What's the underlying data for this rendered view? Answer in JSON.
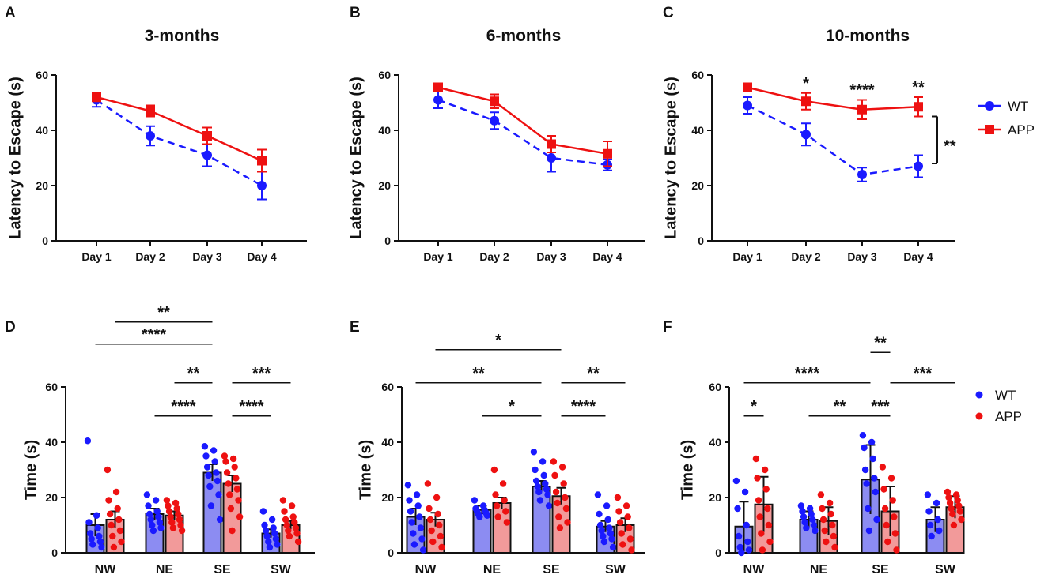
{
  "chart_data": [
    {
      "id": "A",
      "type": "line",
      "panel_label": "A",
      "title": "3-months",
      "xlabel": "",
      "ylabel": "Latency to Escape (s)",
      "ylim": [
        0,
        60
      ],
      "yticks": [
        "0",
        "20",
        "40",
        "60"
      ],
      "categories": [
        "Day 1",
        "Day 2",
        "Day 3",
        "Day 4"
      ],
      "series": [
        {
          "name": "WT",
          "color": "#1a1aff",
          "dashed": true,
          "marker": "circle",
          "values": [
            51,
            38,
            31,
            20
          ],
          "errors": [
            2.5,
            3.5,
            4,
            5
          ]
        },
        {
          "name": "APP",
          "color": "#ee1111",
          "dashed": false,
          "marker": "square",
          "values": [
            52,
            47,
            38,
            29
          ],
          "errors": [
            1.5,
            2,
            3,
            4
          ]
        }
      ],
      "annotations": []
    },
    {
      "id": "B",
      "type": "line",
      "panel_label": "B",
      "title": "6-months",
      "xlabel": "",
      "ylabel": "Latency to Escape (s)",
      "ylim": [
        0,
        60
      ],
      "yticks": [
        "0",
        "20",
        "40",
        "60"
      ],
      "categories": [
        "Day 1",
        "Day 2",
        "Day 3",
        "Day 4"
      ],
      "series": [
        {
          "name": "WT",
          "color": "#1a1aff",
          "dashed": true,
          "marker": "circle",
          "values": [
            51,
            43.5,
            30,
            27.5
          ],
          "errors": [
            3,
            3,
            5,
            2
          ]
        },
        {
          "name": "APP",
          "color": "#ee1111",
          "dashed": false,
          "marker": "square",
          "values": [
            55.5,
            50.5,
            35,
            31.5
          ],
          "errors": [
            1.5,
            2.5,
            3,
            4.5
          ]
        }
      ],
      "annotations": []
    },
    {
      "id": "C",
      "type": "line",
      "panel_label": "C",
      "title": "10-months",
      "xlabel": "",
      "ylabel": "Latency to Escape (s)",
      "ylim": [
        0,
        60
      ],
      "yticks": [
        "0",
        "20",
        "40",
        "60"
      ],
      "categories": [
        "Day 1",
        "Day 2",
        "Day 3",
        "Day 4"
      ],
      "series": [
        {
          "name": "WT",
          "color": "#1a1aff",
          "dashed": true,
          "marker": "circle",
          "values": [
            49,
            38.5,
            24,
            27
          ],
          "errors": [
            3,
            4,
            2.5,
            4
          ]
        },
        {
          "name": "APP",
          "color": "#ee1111",
          "dashed": false,
          "marker": "square",
          "values": [
            55.5,
            50.5,
            47.5,
            48.5
          ],
          "errors": [
            1.5,
            3,
            3.5,
            3.5
          ]
        }
      ],
      "annotations": [
        {
          "label": "*",
          "category": 1
        },
        {
          "label": "****",
          "category": 2
        },
        {
          "label": "**",
          "category": 3
        }
      ],
      "bracket": {
        "label": "**",
        "y_from": 28,
        "y_to": 45
      },
      "legend": [
        {
          "name": "WT",
          "color": "#1a1aff",
          "marker": "circle"
        },
        {
          "name": "APP",
          "color": "#ee1111",
          "marker": "square"
        }
      ]
    },
    {
      "id": "D",
      "type": "bar",
      "panel_label": "D",
      "title": "",
      "xlabel": "",
      "ylabel": "Time (s)",
      "ylim": [
        0,
        60
      ],
      "yticks": [
        "0",
        "20",
        "40",
        "60"
      ],
      "categories": [
        "NW",
        "NE",
        "SE",
        "SW"
      ],
      "series": [
        {
          "name": "WT",
          "color": "#1a1aff",
          "fill": "#8c8cf2",
          "values": [
            10,
            14,
            29,
            7
          ],
          "errors": [
            4,
            2,
            3,
            1.5
          ],
          "points": [
            [
              40.5,
              13.5,
              11,
              9,
              7,
              6,
              5,
              4,
              3,
              2
            ],
            [
              21,
              19,
              17,
              15,
              14,
              13,
              12,
              11,
              10,
              9,
              8
            ],
            [
              38.5,
              37,
              35,
              33,
              31,
              29,
              28,
              26,
              24,
              21,
              17,
              12
            ],
            [
              15,
              12,
              10,
              9,
              8,
              7,
              6,
              5,
              4,
              3,
              2
            ]
          ]
        },
        {
          "name": "APP",
          "color": "#ee1111",
          "fill": "#f29a9a",
          "values": [
            12,
            13.5,
            25,
            10
          ],
          "errors": [
            3,
            1.5,
            3,
            1.5
          ],
          "points": [
            [
              30,
              22,
              19,
              16,
              14,
              12,
              10,
              8,
              6,
              4,
              2
            ],
            [
              19,
              18,
              17,
              16,
              15,
              14,
              13,
              12,
              11,
              10,
              9,
              8
            ],
            [
              35,
              34,
              33,
              31,
              29,
              27,
              25,
              23,
              21,
              19,
              16,
              13,
              8
            ],
            [
              19,
              17,
              15,
              13,
              12,
              11,
              10,
              9,
              8,
              7,
              6,
              4
            ]
          ]
        }
      ],
      "comparisons": [
        {
          "label": "**",
          "y": 83.5,
          "from": [
            0,
            "APP"
          ],
          "to": [
            2,
            "WT"
          ]
        },
        {
          "label": "****",
          "y": 75.5,
          "from": [
            0,
            "WT"
          ],
          "to": [
            2,
            "WT"
          ]
        },
        {
          "label": "**",
          "y": 61.5,
          "from": [
            1,
            "APP"
          ],
          "to": [
            2,
            "WT"
          ]
        },
        {
          "label": "***",
          "y": 61.5,
          "from": [
            2,
            "APP"
          ],
          "to": [
            3,
            "APP"
          ]
        },
        {
          "label": "****",
          "y": 49.5,
          "from": [
            1,
            "WT"
          ],
          "to": [
            2,
            "WT"
          ]
        },
        {
          "label": "****",
          "y": 49.5,
          "from": [
            2,
            "APP"
          ],
          "to": [
            3,
            "WT"
          ]
        }
      ]
    },
    {
      "id": "E",
      "type": "bar",
      "panel_label": "E",
      "title": "",
      "xlabel": "",
      "ylabel": "Time (s)",
      "ylim": [
        0,
        60
      ],
      "yticks": [
        "0",
        "20",
        "40",
        "60"
      ],
      "categories": [
        "NW",
        "NE",
        "SE",
        "SW"
      ],
      "series": [
        {
          "name": "WT",
          "color": "#1a1aff",
          "fill": "#8c8cf2",
          "values": [
            13,
            15.5,
            24,
            9.5
          ],
          "errors": [
            3,
            1.5,
            2,
            2
          ],
          "points": [
            [
              24.5,
              21,
              19,
              17,
              15,
              13,
              11,
              9,
              7,
              5,
              3,
              1
            ],
            [
              19,
              17,
              16,
              15.5,
              15,
              14.5,
              14,
              13.5,
              13
            ],
            [
              36.5,
              33,
              30,
              28,
              26,
              25,
              24,
              23,
              22,
              21,
              19,
              17
            ],
            [
              21,
              17,
              14,
              12,
              10,
              9,
              8,
              7,
              6,
              5,
              4,
              2
            ]
          ]
        },
        {
          "name": "APP",
          "color": "#ee1111",
          "fill": "#f29a9a",
          "values": [
            12,
            18,
            20.5,
            10
          ],
          "errors": [
            2.5,
            2,
            3,
            2.5
          ],
          "points": [
            [
              25,
              20,
              16,
              14,
              12,
              10,
              8,
              6,
              4,
              2
            ],
            [
              30,
              25,
              21,
              19,
              17,
              15,
              13,
              11
            ],
            [
              33,
              31,
              28,
              25,
              22,
              20,
              18,
              16,
              13,
              11,
              9
            ],
            [
              20,
              17,
              15,
              13,
              11,
              9,
              7,
              5,
              3,
              1
            ]
          ]
        }
      ],
      "comparisons": [
        {
          "label": "*",
          "y": 73.5,
          "from": [
            0,
            "APP"
          ],
          "to": [
            2,
            "APP"
          ]
        },
        {
          "label": "**",
          "y": 61.5,
          "from": [
            0,
            "WT"
          ],
          "to": [
            2,
            "WT"
          ]
        },
        {
          "label": "**",
          "y": 61.5,
          "from": [
            2,
            "APP"
          ],
          "to": [
            3,
            "APP"
          ]
        },
        {
          "label": "*",
          "y": 49.5,
          "from": [
            1,
            "WT"
          ],
          "to": [
            2,
            "WT"
          ]
        },
        {
          "label": "****",
          "y": 49.5,
          "from": [
            2,
            "APP"
          ],
          "to": [
            3,
            "WT"
          ]
        }
      ]
    },
    {
      "id": "F",
      "type": "bar",
      "panel_label": "F",
      "title": "",
      "xlabel": "",
      "ylabel": "Time (s)",
      "ylim": [
        0,
        60
      ],
      "yticks": [
        "0",
        "20",
        "40",
        "60"
      ],
      "categories": [
        "NW",
        "NE",
        "SE",
        "SW"
      ],
      "series": [
        {
          "name": "WT",
          "color": "#1a1aff",
          "fill": "#8c8cf2",
          "values": [
            9.5,
            12,
            26.5,
            12
          ],
          "errors": [
            9,
            3,
            12.5,
            4.5
          ],
          "points": [
            [
              26,
              22,
              16,
              10,
              6,
              4,
              2,
              1,
              0
            ],
            [
              17,
              16,
              15,
              14,
              13,
              12,
              11,
              10,
              9,
              8
            ],
            [
              42.5,
              40,
              38,
              34,
              30,
              27,
              25,
              22,
              16,
              12,
              8
            ],
            [
              21,
              18,
              15,
              12,
              10,
              8,
              6
            ]
          ]
        },
        {
          "name": "APP",
          "color": "#ee1111",
          "fill": "#f29a9a",
          "values": [
            17.5,
            11.5,
            15,
            16.5
          ],
          "errors": [
            10,
            5,
            9,
            4
          ],
          "points": [
            [
              34,
              30,
              27,
              23,
              19,
              16,
              13,
              10,
              7,
              4,
              1
            ],
            [
              21,
              18,
              16,
              14,
              12,
              10,
              8,
              6,
              4,
              2
            ],
            [
              31,
              27,
              23,
              19,
              16,
              13,
              10,
              7,
              4,
              1
            ],
            [
              22,
              21,
              20,
              19,
              18,
              17,
              16,
              15,
              14,
              12,
              10
            ]
          ]
        }
      ],
      "comparisons": [
        {
          "label": "**",
          "y": 72.5,
          "from": [
            2,
            "WT"
          ],
          "to": [
            2,
            "APP"
          ]
        },
        {
          "label": "****",
          "y": 61.5,
          "from": [
            0,
            "WT"
          ],
          "to": [
            2,
            "WT"
          ]
        },
        {
          "label": "***",
          "y": 61.5,
          "from": [
            2,
            "APP"
          ],
          "to": [
            3,
            "APP"
          ]
        },
        {
          "label": "*",
          "y": 49.5,
          "from": [
            0,
            "WT"
          ],
          "to": [
            0,
            "APP"
          ]
        },
        {
          "label": "**",
          "y": 49.5,
          "from": [
            1,
            "WT"
          ],
          "to": [
            2,
            "WT"
          ]
        },
        {
          "label": "***",
          "y": 49.5,
          "from": [
            2,
            "WT"
          ],
          "to": [
            2,
            "APP"
          ]
        }
      ],
      "legend": [
        {
          "name": "WT",
          "color": "#1a1aff",
          "marker": "dot"
        },
        {
          "name": "APP",
          "color": "#ee1111",
          "marker": "dot"
        }
      ]
    }
  ]
}
